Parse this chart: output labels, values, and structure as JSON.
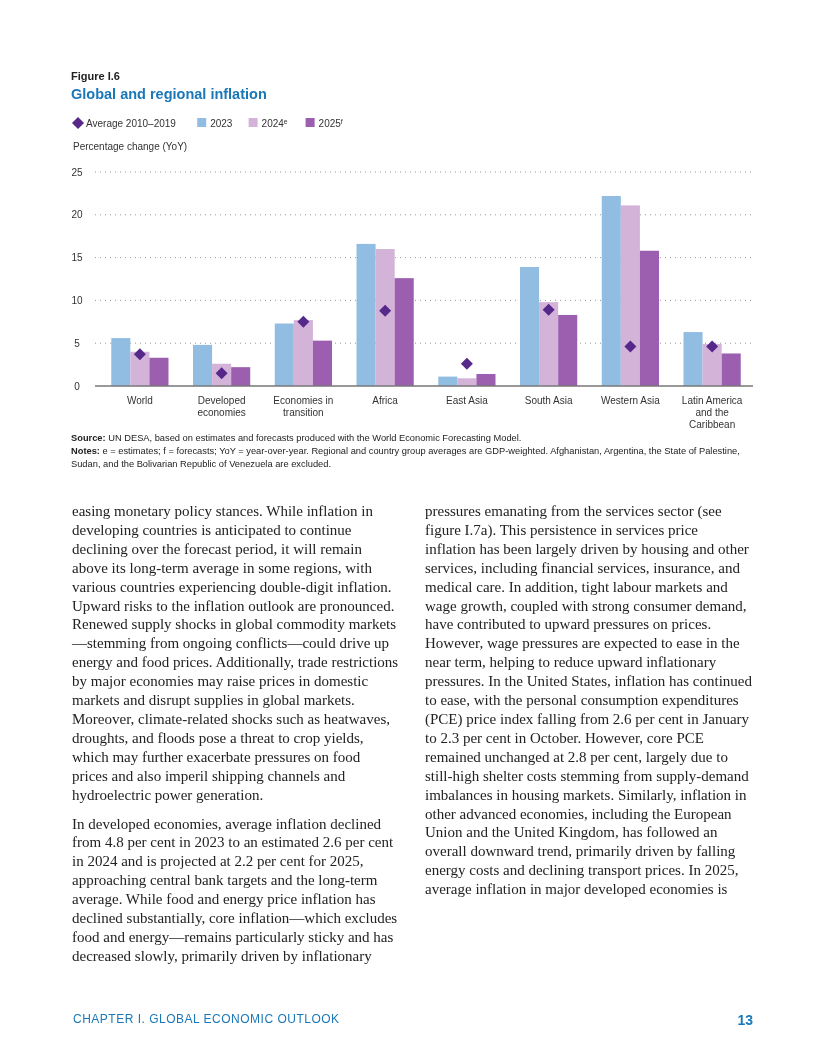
{
  "chart_data": {
    "type": "bar",
    "subtitle": "Figure I.6",
    "title": "Global and regional inflation",
    "ylabel": "Percentage change (YoY)",
    "categories": [
      "World",
      "Developed economies",
      "Economies in transition",
      "Africa",
      "East Asia",
      "South Asia",
      "Western Asia",
      "Latin America and the Caribbean"
    ],
    "series": [
      {
        "name": "Average 2010–2019",
        "type": "scatter",
        "color": "#55288a",
        "marker": "diamond",
        "x": [
          "World",
          "Developed economies",
          "Economies in transition",
          "Africa",
          "East Asia",
          "South Asia",
          "Western Asia",
          "Latin America and the Caribbean"
        ],
        "values": [
          3.7,
          1.5,
          7.5,
          8.8,
          2.6,
          8.9,
          4.6,
          4.6
        ]
      },
      {
        "name": "2023",
        "color": "#92bde3",
        "values": [
          5.6,
          4.8,
          7.3,
          16.6,
          1.1,
          13.9,
          22.2,
          6.3
        ]
      },
      {
        "name": "2024$^{e}$",
        "color": "#d4b3d9",
        "values": [
          4.0,
          2.6,
          7.7,
          16.0,
          0.9,
          9.8,
          21.1,
          4.9
        ]
      },
      {
        "name": "2025$^{f}$",
        "color": "#9c5fb0",
        "values": [
          3.3,
          2.2,
          5.3,
          12.6,
          1.4,
          8.3,
          15.8,
          3.8
        ]
      }
    ],
    "ylim": [
      0,
      25
    ],
    "yticks": [
      0,
      5,
      10,
      15,
      20,
      25
    ],
    "grid": "y",
    "legend": "top left",
    "annotations": [
      "Source: UN DESA, based on estimates and forecasts produced with the World Economic Forecasting Model.",
      "Notes: e = estimates; f = forecasts; YoY = year-over-year. Regional and country group averages are GDP-weighted. Afghanistan, Argentina, the State of Palestine, Sudan, and the Bolivarian Republic of Venezuela are excluded.",
      "easing monetary policy stances. While inflation in developing countries is anticipated to continue declining over the forecast period, it will remain above its long-term average in some regions, with various countries experiencing double-digit inflation. Upward risks to the inflation outlook are pronounced. Renewed supply shocks in global commodity markets—stemming from ongoing conflicts—could drive up energy and food prices. Additionally, trade restrictions by major economies may raise prices in domestic markets and disrupt supplies in global markets. Moreover, climate-related shocks such as heatwaves, droughts, and floods pose a threat to crop yields, which may further exacerbate pressures on food prices and also imperil shipping channels and hydroelectric power generation.",
      "In developed economies, average inflation declined from 4.8 per cent in 2023 to an estimated 2.6 per cent in 2024 and is projected at 2.2 per cent for 2025, approaching central bank targets and the long-term average. While food and energy price inflation has declined substantially, core inflation—which excludes food and energy—remains particularly sticky and has decreased slowly, primarily driven by inflationary pressures emanating from the services sector (see figure I.7a). This persistence in services price inflation has been largely driven by housing and other services, including financial services, insurance, and medical care. In addition, tight labour markets and wage growth, coupled with strong consumer demand, have contributed to upward pressures on prices. However, wage pressures are expected to ease in the near term, helping to reduce upward inflationary pressures. In the United States, inflation has continued to ease, with the personal consumption expenditures (PCE) price index falling from 2.6 per cent in January to 2.3 per cent in October. However, core PCE remained unchanged at 2.8 per cent, largely due to still-high shelter costs stemming from supply-demand imbalances in housing markets. Similarly, inflation in other advanced economies, including the European Union and the United Kingdom, has followed an overall downward trend, primarily driven by falling energy costs and declining transport prices. In 2025, average inflation in major developed economies is",
      "CHAPTER I. GLOBAL ECONOMIC OUTLOOK",
      "13"
    ]
  }
}
